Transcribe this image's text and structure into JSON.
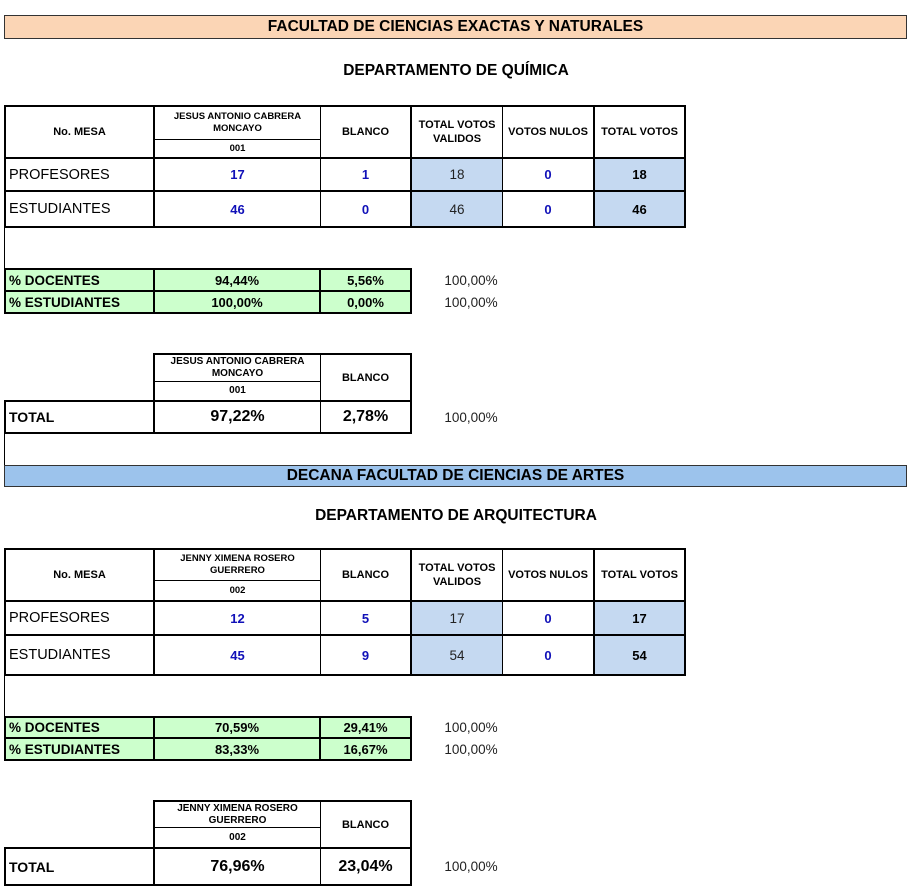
{
  "faculty_banner": "FACULTAD DE CIENCIAS EXACTAS Y NATURALES",
  "section2_banner": "DECANA FACULTAD DE CIENCIAS DE ARTES",
  "colors": {
    "peach": "#fbd5b5",
    "light_blue_banner": "#9cc3ec",
    "cell_blue": "#c5d9f1",
    "green": "#ccffcc",
    "value_blue": "#1010b8"
  },
  "headers": {
    "mesa": "No. MESA",
    "blanco": "BLANCO",
    "total_validos": "TOTAL VOTOS VALIDOS",
    "votos_nulos": "VOTOS NULOS",
    "total_votos": "TOTAL VOTOS"
  },
  "quimica": {
    "title": "DEPARTAMENTO DE QUÍMICA",
    "candidate": "JESUS ANTONIO CABRERA MONCAYO",
    "code": "001",
    "rows": [
      {
        "label": "PROFESORES",
        "candidate": "17",
        "blanco": "1",
        "validos": "18",
        "nulos": "0",
        "total": "18"
      },
      {
        "label": "ESTUDIANTES",
        "candidate": "46",
        "blanco": "0",
        "validos": "46",
        "nulos": "0",
        "total": "46"
      }
    ],
    "pct": [
      {
        "label": "% DOCENTES",
        "candidate": "94,44%",
        "blanco": "5,56%",
        "total": "100,00%"
      },
      {
        "label": "% ESTUDIANTES",
        "candidate": "100,00%",
        "blanco": "0,00%",
        "total": "100,00%"
      }
    ],
    "total": {
      "label": "TOTAL",
      "candidate": "97,22%",
      "blanco": "2,78%",
      "sum": "100,00%"
    }
  },
  "arquitectura": {
    "title": "DEPARTAMENTO DE ARQUITECTURA",
    "candidate": "JENNY XIMENA ROSERO GUERRERO",
    "code": "002",
    "rows": [
      {
        "label": "PROFESORES",
        "candidate": "12",
        "blanco": "5",
        "validos": "17",
        "nulos": "0",
        "total": "17"
      },
      {
        "label": "ESTUDIANTES",
        "candidate": "45",
        "blanco": "9",
        "validos": "54",
        "nulos": "0",
        "total": "54"
      }
    ],
    "pct": [
      {
        "label": "% DOCENTES",
        "candidate": "70,59%",
        "blanco": "29,41%",
        "total": "100,00%"
      },
      {
        "label": "% ESTUDIANTES",
        "candidate": "83,33%",
        "blanco": "16,67%",
        "total": "100,00%"
      }
    ],
    "total": {
      "label": "TOTAL",
      "candidate": "76,96%",
      "blanco": "23,04%",
      "sum": "100,00%"
    }
  }
}
